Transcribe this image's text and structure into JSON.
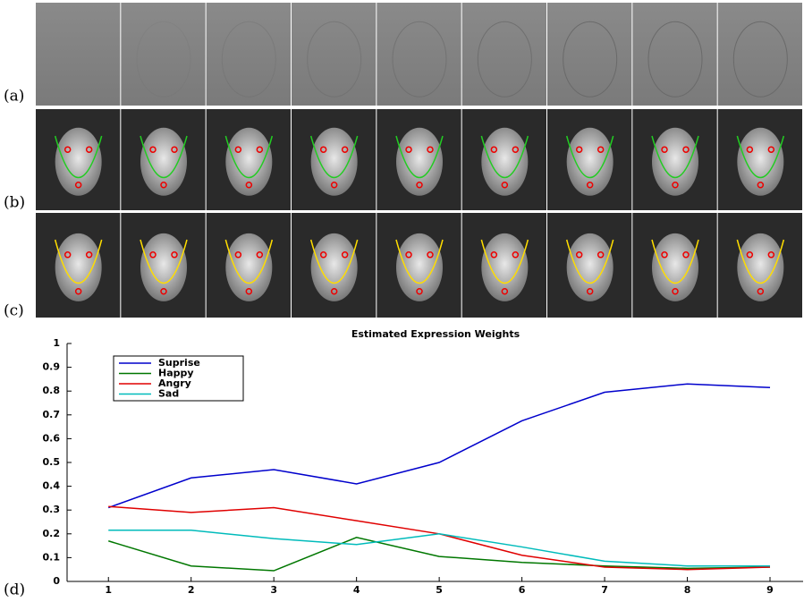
{
  "panel_labels": [
    "(a)",
    "(b)",
    "(c)",
    "(d)"
  ],
  "chart_data": {
    "type": "line",
    "title": "Estimated Expression Weights",
    "x": [
      1,
      2,
      3,
      4,
      5,
      6,
      7,
      8,
      9
    ],
    "xlim": [
      0.5,
      9.4
    ],
    "xticks": [
      1,
      2,
      3,
      4,
      5,
      6,
      7,
      8,
      9
    ],
    "ylim": [
      0,
      1
    ],
    "yticks": [
      0,
      0.1,
      0.2,
      0.3,
      0.4,
      0.5,
      0.6,
      0.7,
      0.8,
      0.9,
      1
    ],
    "legend": "upper left",
    "series": [
      {
        "name": "Suprise",
        "color": "#0000cc",
        "values": [
          0.31,
          0.435,
          0.47,
          0.41,
          0.5,
          0.675,
          0.795,
          0.83,
          0.815
        ]
      },
      {
        "name": "Happy",
        "color": "#007700",
        "values": [
          0.17,
          0.065,
          0.045,
          0.185,
          0.105,
          0.08,
          0.065,
          0.055,
          0.06
        ]
      },
      {
        "name": "Angry",
        "color": "#e00000",
        "values": [
          0.315,
          0.29,
          0.31,
          0.255,
          0.2,
          0.11,
          0.06,
          0.05,
          0.06
        ]
      },
      {
        "name": "Sad",
        "color": "#00bbbb",
        "values": [
          0.215,
          0.215,
          0.18,
          0.155,
          0.2,
          0.145,
          0.085,
          0.065,
          0.065
        ]
      }
    ]
  }
}
